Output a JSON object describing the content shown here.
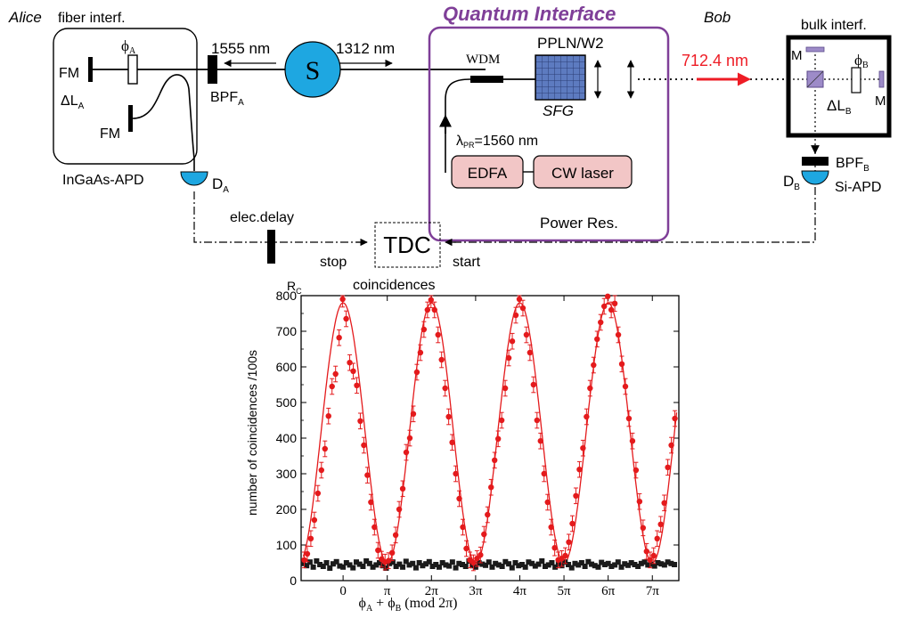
{
  "diagram": {
    "alice": {
      "name": "Alice",
      "interferometer": "fiber interf.",
      "phase": "ϕ",
      "phase_sub": "A",
      "path_diff": "ΔL",
      "path_diff_sub": "A",
      "mirror1": "FM",
      "mirror2": "FM",
      "filter": "BPF",
      "filter_sub": "A",
      "detector": "D",
      "detector_sub": "A",
      "detector_type": "InGaAs-APD"
    },
    "source": {
      "label": "S",
      "wavelength_left": "1555 nm",
      "wavelength_right": "1312 nm",
      "color": "#1ea7e1"
    },
    "interface": {
      "title": "Quantum Interface",
      "title_color": "#7f3f98",
      "wdm": "WDM",
      "crystal": "PPLN/W2",
      "process": "SFG",
      "pump_lambda": "λ",
      "pump_lambda_sub": "PR",
      "pump_value": "=1560 nm",
      "amplifier": "EDFA",
      "laser": "CW laser",
      "footer": "Power Res.",
      "box_fill": "#f2c6c6",
      "crystal_color": "#4f6fb5"
    },
    "bob": {
      "name": "Bob",
      "interferometer": "bulk interf.",
      "wavelength": "712.4 nm",
      "wavelength_color": "#ee1c25",
      "mirror1": "M",
      "mirror2": "M",
      "phase": "ϕ",
      "phase_sub": "B",
      "path_diff": "ΔL",
      "path_diff_sub": "B",
      "filter": "BPF",
      "filter_sub": "B",
      "detector": "D",
      "detector_sub": "B",
      "detector_type": "Si-APD"
    },
    "timing": {
      "tdc": "TDC",
      "delay": "elec.delay",
      "stop": "stop",
      "start": "start",
      "coincidences": "coincidences"
    }
  },
  "chart_data": {
    "type": "scatter",
    "ylabel": "number of coincidences /100s",
    "xlabel": "ϕ_A + ϕ_B (mod 2π)",
    "y_corner_label": "R",
    "y_corner_sub": "C",
    "ylim": [
      0,
      800
    ],
    "xlim_pi": [
      -0.95,
      7.6
    ],
    "y_ticks": [
      0,
      100,
      200,
      300,
      400,
      500,
      600,
      700,
      800
    ],
    "x_ticks": [
      {
        "value_pi": 0,
        "label": "0"
      },
      {
        "value_pi": 1,
        "label": "π"
      },
      {
        "value_pi": 2,
        "label": "2π"
      },
      {
        "value_pi": 3,
        "label": "3π"
      },
      {
        "value_pi": 4,
        "label": "4π"
      },
      {
        "value_pi": 5,
        "label": "5π"
      },
      {
        "value_pi": 6,
        "label": "6π"
      },
      {
        "value_pi": 7,
        "label": "7π"
      }
    ],
    "series": [
      {
        "color": "#e41a1c",
        "marker": "circle",
        "fit": {
          "type": "cosine",
          "offset": 415,
          "amplitude": 365,
          "period_pi": 2,
          "peak_pi": 0
        },
        "error": 22,
        "x_pi": [
          -0.88,
          -0.81,
          -0.73,
          -0.65,
          -0.57,
          -0.49,
          -0.41,
          -0.33,
          -0.25,
          -0.17,
          -0.09,
          -0.01,
          0.07,
          0.15,
          0.23,
          0.31,
          0.39,
          0.47,
          0.55,
          0.63,
          0.71,
          0.79,
          0.87,
          0.95,
          1.03,
          1.11,
          1.19,
          1.27,
          1.35,
          1.43,
          1.51,
          1.59,
          1.67,
          1.75,
          1.83,
          1.91,
          1.99,
          2.07,
          2.15,
          2.23,
          2.31,
          2.39,
          2.47,
          2.55,
          2.63,
          2.71,
          2.79,
          2.87,
          2.95,
          3.03,
          3.11,
          3.19,
          3.27,
          3.35,
          3.43,
          3.51,
          3.59,
          3.67,
          3.75,
          3.83,
          3.91,
          3.99,
          4.07,
          4.15,
          4.23,
          4.31,
          4.39,
          4.47,
          4.55,
          4.63,
          4.71,
          4.79,
          4.87,
          4.95,
          5.03,
          5.11,
          5.19,
          5.27,
          5.35,
          5.43,
          5.51,
          5.59,
          5.67,
          5.75,
          5.83,
          5.91,
          5.99,
          6.07,
          6.15,
          6.23,
          6.31,
          6.39,
          6.47,
          6.55,
          6.63,
          6.71,
          6.79,
          6.87,
          6.95,
          7.03,
          7.11,
          7.19,
          7.27,
          7.35,
          7.43,
          7.51
        ],
        "y": [
          58,
          75,
          118,
          170,
          245,
          310,
          370,
          462,
          545,
          580,
          682,
          790,
          735,
          612,
          588,
          548,
          448,
          380,
          296,
          220,
          150,
          85,
          60,
          52,
          56,
          78,
          128,
          200,
          258,
          360,
          400,
          468,
          585,
          640,
          705,
          760,
          788,
          760,
          690,
          620,
          540,
          460,
          388,
          300,
          230,
          150,
          90,
          58,
          50,
          62,
          72,
          130,
          185,
          262,
          338,
          398,
          450,
          540,
          625,
          672,
          745,
          790,
          765,
          690,
          640,
          550,
          450,
          392,
          300,
          220,
          150,
          92,
          58,
          62,
          70,
          108,
          160,
          238,
          312,
          372,
          460,
          540,
          605,
          678,
          725,
          770,
          798,
          760,
          778,
          690,
          608,
          545,
          455,
          392,
          310,
          222,
          148,
          82,
          58,
          70,
          118,
          158,
          218,
          318,
          380,
          455
        ]
      },
      {
        "color": "#1a1a1a",
        "marker": "square",
        "x_step_pi": 0.075,
        "x_start_pi": -0.9,
        "y": [
          48,
          42,
          52,
          38,
          55,
          45,
          40,
          50,
          35,
          47,
          53,
          41,
          38,
          50,
          44,
          36,
          52,
          46,
          40,
          55,
          48,
          38,
          44,
          50,
          42,
          35,
          48,
          52,
          40,
          46,
          38,
          54,
          44,
          48,
          36,
          50,
          42,
          47,
          53,
          40,
          45,
          38,
          50,
          44,
          41,
          52,
          36,
          48,
          45,
          40,
          55,
          42,
          38,
          50,
          46,
          43,
          52,
          38,
          48,
          44,
          40,
          53,
          47,
          36,
          50,
          42,
          45,
          38,
          52,
          48,
          41,
          46,
          55,
          40,
          44,
          50,
          38,
          47,
          42,
          52,
          45,
          36,
          48,
          44,
          50,
          40,
          53,
          46,
          42,
          38,
          51,
          45,
          48,
          40,
          44,
          52,
          38,
          47,
          43,
          50,
          45,
          40,
          48,
          52,
          44,
          46,
          41,
          50,
          47,
          44,
          52,
          48,
          45
        ]
      }
    ]
  }
}
